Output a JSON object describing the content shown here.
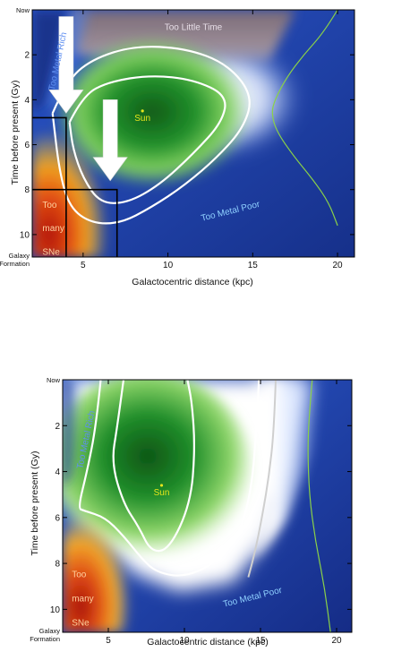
{
  "colors": {
    "background_blue": "#1e3f9e",
    "habitable_green": "#1f8a2a",
    "too_many_sne_red": "#c8261a",
    "too_little_time_gray": "#8a7a84",
    "contour_white": "#ffffff",
    "profile_curve": "#8ad148",
    "sun_marker": "#e6e61c",
    "arrow_white": "#ffffff",
    "box_black": "#000000"
  },
  "chart_data": [
    {
      "type": "heatmap",
      "xlabel": "Galactocentric distance (kpc)",
      "ylabel": "Time before present (Gy)",
      "xlim": [
        2,
        21
      ],
      "ylim": [
        0,
        11
      ],
      "x_ticks": [
        5,
        10,
        15,
        20
      ],
      "y_ticks": [
        2,
        4,
        6,
        8,
        10
      ],
      "y_ends": {
        "top": "Now",
        "bottom": "Galaxy\nFormation"
      },
      "annotations": {
        "too_little_time": "Too Little Time",
        "too_metal_rich": "Too Metal Rich",
        "too_metal_poor": "Too Metal Poor",
        "too_many_sne": [
          "Too",
          "many",
          "SNe"
        ],
        "sun": "Sun"
      },
      "sun_position": {
        "x": 8.5,
        "y": 4.5
      },
      "arrows": [
        {
          "x": 4,
          "y_from": 0.3,
          "y_to": 4.6
        },
        {
          "x": 6.6,
          "y_from": 4.0,
          "y_to": 7.6
        }
      ],
      "boxes": [
        {
          "x_max": 4,
          "y_min": 4.8
        },
        {
          "x_max": 7,
          "y_min": 8
        }
      ],
      "contours": [
        [
          [
            3.2,
            4.6
          ],
          [
            4,
            3.2
          ],
          [
            5.5,
            2.2
          ],
          [
            8,
            1.6
          ],
          [
            11,
            1.7
          ],
          [
            13.5,
            2.4
          ],
          [
            15,
            3.8
          ],
          [
            14.5,
            5.2
          ],
          [
            13,
            6.5
          ],
          [
            11,
            7.8
          ],
          [
            9,
            8.8
          ],
          [
            7.2,
            9.5
          ],
          [
            5.5,
            9.5
          ],
          [
            4.2,
            8.8
          ],
          [
            3.6,
            7.2
          ],
          [
            3.2,
            4.6
          ]
        ],
        [
          [
            4.2,
            5
          ],
          [
            5,
            3.8
          ],
          [
            6.5,
            3.2
          ],
          [
            9,
            2.9
          ],
          [
            11.5,
            3.1
          ],
          [
            13.5,
            3.8
          ],
          [
            13.2,
            5
          ],
          [
            11.5,
            6.4
          ],
          [
            9.5,
            7.8
          ],
          [
            7.6,
            8.6
          ],
          [
            6,
            8.6
          ],
          [
            5,
            7.5
          ],
          [
            4.4,
            6.2
          ],
          [
            4.2,
            5
          ]
        ]
      ],
      "profile_curve": [
        [
          20,
          0
        ],
        [
          19.2,
          1
        ],
        [
          18,
          2
        ],
        [
          17,
          3
        ],
        [
          16.3,
          4
        ],
        [
          16.1,
          4.6
        ],
        [
          16.4,
          5.4
        ],
        [
          17.4,
          6.5
        ],
        [
          18.6,
          7.6
        ],
        [
          19.5,
          8.6
        ],
        [
          20,
          9.6
        ]
      ]
    },
    {
      "type": "heatmap",
      "xlabel": "Galactocentric distance (kpc)",
      "ylabel": "Time before present (Gy)",
      "xlim": [
        2,
        21
      ],
      "ylim": [
        0,
        11
      ],
      "x_ticks": [
        5,
        10,
        15,
        20
      ],
      "y_ticks": [
        2,
        4,
        6,
        8,
        10
      ],
      "y_ends": {
        "top": "Now",
        "bottom": "Galaxy\nFormation"
      },
      "annotations": {
        "too_metal_rich": "Too Metal Rich",
        "too_metal_poor": "Too Metal Poor",
        "too_many_sne": [
          "Too",
          "many",
          "SNe"
        ],
        "sun": "Sun"
      },
      "sun_position": {
        "x": 8.5,
        "y": 4.6
      },
      "contours": [
        [
          [
            4.5,
            0
          ],
          [
            4.2,
            2
          ],
          [
            3.6,
            4
          ],
          [
            3,
            5.6
          ],
          [
            3.4,
            5.7
          ],
          [
            4.8,
            6
          ],
          [
            6,
            6.8
          ],
          [
            7.2,
            7.8
          ],
          [
            8.2,
            8.4
          ],
          [
            10,
            8.6
          ],
          [
            12,
            8
          ],
          [
            13.6,
            6.8
          ],
          [
            14.4,
            4.8
          ],
          [
            14.7,
            2.5
          ],
          [
            14.9,
            0
          ]
        ],
        [
          [
            6,
            0
          ],
          [
            5.6,
            2
          ],
          [
            5.2,
            3.6
          ],
          [
            6,
            5.4
          ],
          [
            7,
            6.4
          ],
          [
            7.8,
            7.5
          ],
          [
            9,
            7.4
          ],
          [
            10.4,
            5.4
          ],
          [
            10.7,
            3
          ],
          [
            10.5,
            1
          ],
          [
            10.2,
            0
          ]
        ]
      ],
      "gray_contour": [
        [
          16,
          0
        ],
        [
          15.9,
          2
        ],
        [
          15.6,
          4
        ],
        [
          15.1,
          6
        ],
        [
          14.6,
          7.6
        ],
        [
          14.2,
          8.6
        ]
      ],
      "profile_curve": [
        [
          18.4,
          0
        ],
        [
          18.2,
          1.5
        ],
        [
          18.1,
          3
        ],
        [
          18.2,
          5
        ],
        [
          18.6,
          7
        ],
        [
          19.2,
          9
        ],
        [
          19.6,
          11
        ]
      ]
    }
  ]
}
